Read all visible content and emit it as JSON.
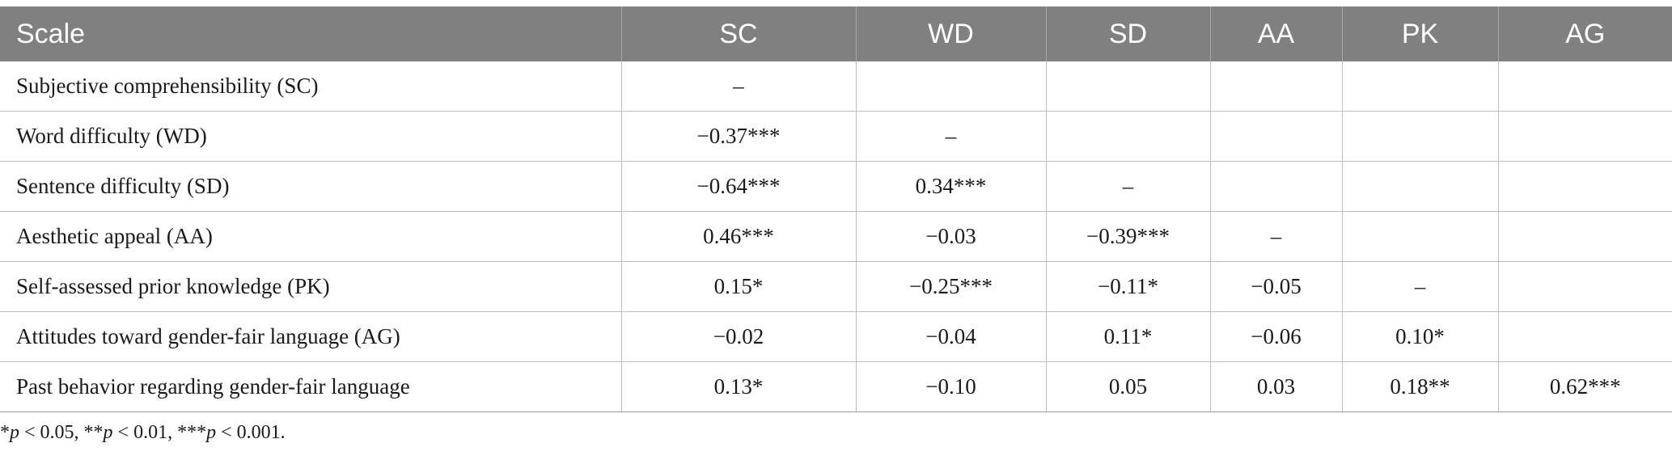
{
  "table": {
    "headers": [
      "Scale",
      "SC",
      "WD",
      "SD",
      "AA",
      "PK",
      "AG"
    ],
    "rows": [
      {
        "label": "Subjective comprehensibility (SC)",
        "cells": [
          "–",
          "",
          "",
          "",
          "",
          ""
        ]
      },
      {
        "label": "Word difficulty (WD)",
        "cells": [
          "−0.37***",
          "–",
          "",
          "",
          "",
          ""
        ]
      },
      {
        "label": "Sentence difficulty (SD)",
        "cells": [
          "−0.64***",
          "0.34***",
          "–",
          "",
          "",
          ""
        ]
      },
      {
        "label": "Aesthetic appeal (AA)",
        "cells": [
          "0.46***",
          "−0.03",
          "−0.39***",
          "–",
          "",
          ""
        ]
      },
      {
        "label": "Self-assessed prior knowledge (PK)",
        "cells": [
          "0.15*",
          "−0.25***",
          "−0.11*",
          "−0.05",
          "–",
          ""
        ]
      },
      {
        "label": "Attitudes toward gender-fair language (AG)",
        "cells": [
          "−0.02",
          "−0.04",
          "0.11*",
          "−0.06",
          "0.10*",
          ""
        ]
      },
      {
        "label": "Past behavior regarding gender-fair language",
        "cells": [
          "0.13*",
          "−0.10",
          "0.05",
          "0.03",
          "0.18**",
          "0.62***"
        ]
      }
    ]
  },
  "note": {
    "p1_star": "*",
    "p1_label": "p",
    "p1_rest": " < 0.05, **",
    "p2_label": "p",
    "p2_rest": " < 0.01, ***",
    "p3_label": "p",
    "p3_rest": " < 0.001."
  }
}
